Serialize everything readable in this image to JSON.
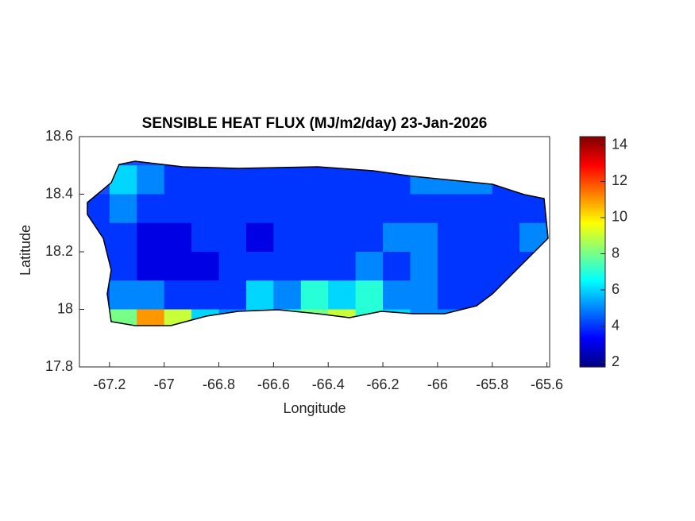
{
  "chart_data": {
    "type": "heatmap",
    "title": "SENSIBLE HEAT FLUX (MJ/m2/day) 23-Jan-2026",
    "x_label": "Longitude",
    "y_label": "Latitude",
    "xlim": [
      -67.31,
      -65.59
    ],
    "ylim": [
      17.8,
      18.6
    ],
    "xticks": [
      -67.2,
      -67,
      -66.8,
      -66.6,
      -66.4,
      -66.2,
      -66,
      -65.8,
      -65.6
    ],
    "yticks": [
      17.8,
      18,
      18.2,
      18.4,
      18.6
    ],
    "lon": [
      -67.25,
      -67.15,
      -67.05,
      -66.95,
      -66.85,
      -66.75,
      -66.65,
      -66.55,
      -66.45,
      -66.35,
      -66.25,
      -66.15,
      -66.05,
      -65.95,
      -65.85,
      -65.75,
      -65.65
    ],
    "lat": [
      18.45,
      18.35,
      18.25,
      18.15,
      18.05,
      17.95
    ],
    "values": [
      [
        null,
        6,
        5,
        4,
        4,
        4,
        4,
        4,
        4,
        4,
        4,
        4,
        5,
        5,
        5,
        4,
        null
      ],
      [
        4,
        5,
        4,
        4,
        4,
        4,
        4,
        4,
        4,
        4,
        4,
        4,
        4,
        4,
        4,
        4,
        4
      ],
      [
        4,
        4,
        3,
        3,
        4,
        4,
        3,
        4,
        4,
        4,
        4,
        5,
        5,
        4,
        4,
        4,
        5
      ],
      [
        4,
        4,
        3,
        3,
        3,
        4,
        4,
        4,
        4,
        4,
        5,
        4,
        5,
        4,
        4,
        4,
        4
      ],
      [
        4,
        5,
        5,
        4,
        4,
        4,
        6,
        5,
        7,
        6,
        7,
        5,
        5,
        4,
        4,
        4,
        null
      ],
      [
        6,
        8,
        11,
        9,
        6,
        5,
        6,
        7,
        8,
        9,
        7,
        6,
        5,
        5,
        4,
        null,
        null
      ]
    ],
    "colormap": "jet",
    "clim": [
      1.74,
      14.48
    ],
    "cticks": [
      2,
      4,
      6,
      8,
      10,
      12,
      14
    ]
  }
}
